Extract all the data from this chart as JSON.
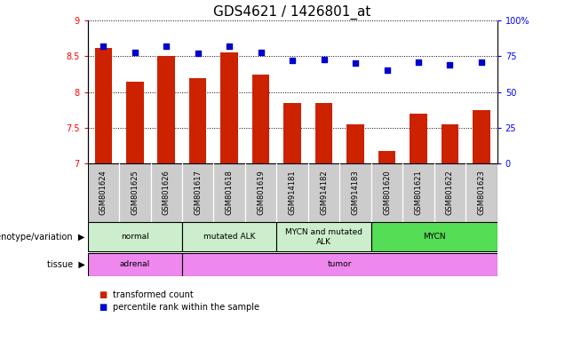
{
  "title": "GDS4621 / 1426801_at",
  "samples": [
    "GSM801624",
    "GSM801625",
    "GSM801626",
    "GSM801617",
    "GSM801618",
    "GSM801619",
    "GSM914181",
    "GSM914182",
    "GSM914183",
    "GSM801620",
    "GSM801621",
    "GSM801622",
    "GSM801623"
  ],
  "red_values": [
    8.62,
    8.15,
    8.5,
    8.2,
    8.55,
    8.25,
    7.85,
    7.85,
    7.55,
    7.18,
    7.7,
    7.55,
    7.75
  ],
  "blue_values": [
    82,
    78,
    82,
    77,
    82,
    78,
    72,
    73,
    70,
    65,
    71,
    69,
    71
  ],
  "ylim_left": [
    7,
    9
  ],
  "ylim_right": [
    0,
    100
  ],
  "yticks_left": [
    7,
    7.5,
    8,
    8.5,
    9
  ],
  "ytick_labels_left": [
    "7",
    "7.5",
    "8",
    "8.5",
    "9"
  ],
  "yticks_right": [
    0,
    25,
    50,
    75,
    100
  ],
  "ytick_labels_right": [
    "0",
    "25",
    "50",
    "75",
    "100%"
  ],
  "genotype_groups": [
    {
      "label": "normal",
      "start": 0,
      "end": 3
    },
    {
      "label": "mutated ALK",
      "start": 3,
      "end": 6
    },
    {
      "label": "MYCN and mutated\nALK",
      "start": 6,
      "end": 9
    },
    {
      "label": "MYCN",
      "start": 9,
      "end": 13
    }
  ],
  "genotype_colors": [
    "#cceecc",
    "#cceecc",
    "#cceecc",
    "#55dd55"
  ],
  "tissue_groups": [
    {
      "label": "adrenal",
      "start": 0,
      "end": 3
    },
    {
      "label": "tumor",
      "start": 3,
      "end": 13
    }
  ],
  "tissue_colors": [
    "#ee88ee",
    "#ee88ee"
  ],
  "bar_color": "#cc2200",
  "dot_color": "#0000cc",
  "sample_box_color": "#cccccc",
  "title_fontsize": 11,
  "tick_fontsize": 7,
  "label_fontsize": 7,
  "sample_fontsize": 6
}
